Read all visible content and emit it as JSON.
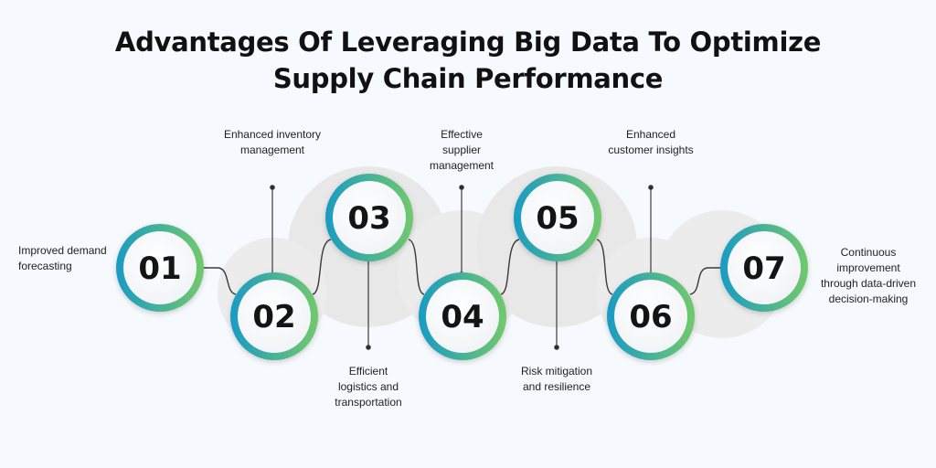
{
  "title": {
    "line1": "Advantages Of Leveraging Big Data To Optimize",
    "line2": "Supply Chain Performance"
  },
  "colors": {
    "ring_start": "#1a9bc4",
    "ring_end": "#72c96b",
    "connector": "#3a3a3a",
    "shadow_blob": "#e6e6e6"
  },
  "steps": [
    {
      "number": "01",
      "label_lines": [
        "Improved demand",
        "forecasting"
      ]
    },
    {
      "number": "02",
      "label_lines": [
        "Enhanced inventory",
        "management"
      ]
    },
    {
      "number": "03",
      "label_lines": [
        "Efficient",
        "logistics and",
        "transportation"
      ]
    },
    {
      "number": "04",
      "label_lines": [
        "Effective",
        "supplier",
        "management"
      ]
    },
    {
      "number": "05",
      "label_lines": [
        "Risk mitigation",
        "and resilience"
      ]
    },
    {
      "number": "06",
      "label_lines": [
        "Enhanced",
        "customer insights"
      ]
    },
    {
      "number": "07",
      "label_lines": [
        "Continuous",
        "improvement",
        "through data-driven",
        "decision-making"
      ]
    }
  ]
}
